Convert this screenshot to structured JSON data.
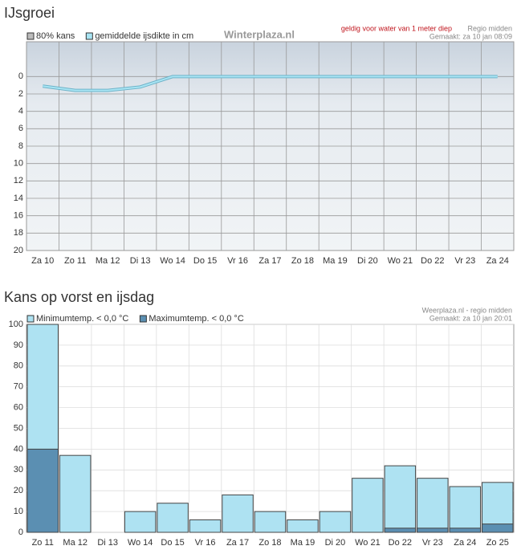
{
  "chart_data": [
    {
      "type": "line",
      "title": "IJsgroei",
      "legend": [
        "80% kans"
      ],
      "brand": "Winterplaza.nl",
      "note": "geldig voor water van 1 meter diep",
      "region": "Regio midden",
      "made": "Gemaakt: za 10 jan 08:09",
      "categories": [
        "Za 10",
        "Zo 11",
        "Ma 12",
        "Di 13",
        "Wo 14",
        "Do 15",
        "Vr 16",
        "Za 17",
        "Zo 18",
        "Ma 19",
        "Di 20",
        "Wo 21",
        "Do 22",
        "Vr 23",
        "Za 24"
      ],
      "series": [
        {
          "name": "gemiddelde ijsdikte in cm",
          "color": "#a8e4f3",
          "values": [
            1.1,
            1.6,
            1.6,
            1.2,
            0,
            0,
            0,
            0,
            0,
            0,
            0,
            0,
            0,
            0,
            0
          ]
        }
      ],
      "ylim": [
        20,
        -4
      ],
      "yticks": [
        0,
        2,
        4,
        6,
        8,
        10,
        12,
        14,
        16,
        18,
        20
      ],
      "grid": true
    },
    {
      "type": "bar",
      "title": "Kans op vorst en ijsdag",
      "region": "Weerplaza.nl - regio midden",
      "made": "Gemaakt: za 10 jan 20:01",
      "categories": [
        "Zo 11",
        "Ma 12",
        "Di 13",
        "Wo 14",
        "Do 15",
        "Vr 16",
        "Za 17",
        "Zo 18",
        "Ma 19",
        "Di 20",
        "Wo 21",
        "Do 22",
        "Vr 23",
        "Za 24",
        "Zo 25"
      ],
      "series": [
        {
          "name": "Minimumtemp. < 0,0 °C",
          "color": "#aee2f2",
          "values": [
            100,
            37,
            0,
            10,
            14,
            6,
            18,
            10,
            6,
            10,
            26,
            32,
            26,
            22,
            24
          ]
        },
        {
          "name": "Maximumtemp. < 0,0 °C",
          "color": "#5b8fb2",
          "values": [
            40,
            0,
            0,
            0,
            0,
            0,
            0,
            0,
            0,
            0,
            0,
            2,
            2,
            2,
            4
          ]
        }
      ],
      "ylim": [
        0,
        100
      ],
      "yticks": [
        0,
        10,
        20,
        30,
        40,
        50,
        60,
        70,
        80,
        90,
        100
      ],
      "grid": true
    }
  ]
}
